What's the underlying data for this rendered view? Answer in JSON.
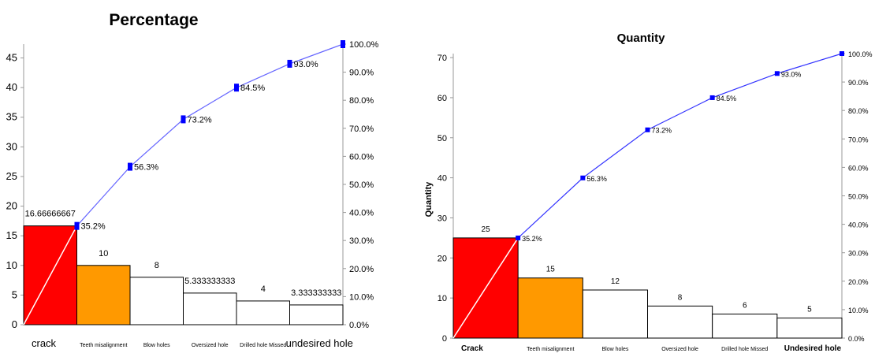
{
  "chart_data": [
    {
      "type": "bar",
      "title": "Percentage",
      "ylabel": "",
      "categories": [
        "crack",
        "Teeth misalignment",
        "Blow holes",
        "Oversized hole",
        "Drilled hole Missed",
        "undesired hole"
      ],
      "values": [
        16.66666667,
        10,
        8,
        5.333333333,
        4,
        3.333333333
      ],
      "value_labels": [
        "16.66666667",
        "10",
        "8",
        "5.333333333",
        "4",
        "3.333333333"
      ],
      "cumulative_percent": [
        35.2,
        56.3,
        73.2,
        84.5,
        93.0,
        100.0
      ],
      "cumulative_labels": [
        "35.2%",
        "56.3%",
        "73.2%",
        "84.5%",
        "93.0%",
        "100.0%"
      ],
      "ylim": [
        0,
        47.33
      ],
      "yticks": [
        "0",
        "5",
        "10",
        "15",
        "20",
        "25",
        "30",
        "35",
        "40",
        "45"
      ],
      "y2lim": [
        0,
        100
      ],
      "y2ticks": [
        "0.0%",
        "10.0%",
        "20.0%",
        "30.0%",
        "40.0%",
        "50.0%",
        "60.0%",
        "70.0%",
        "80.0%",
        "90.0%",
        "100.0%"
      ],
      "grid": false,
      "bar_colors": [
        "#ff0000",
        "#ff9900",
        "#ffffff",
        "#ffffff",
        "#ffffff",
        "#ffffff"
      ],
      "line_color": "#6666ff",
      "marker_color": "#0000ff"
    },
    {
      "type": "bar",
      "title": "Quantity",
      "ylabel": "Quantity",
      "categories": [
        "Crack",
        "Teeth misalignment",
        "Blow holes",
        "Oversized hole",
        "Drilled hole Missed",
        "Undesired hole"
      ],
      "values": [
        25,
        15,
        12,
        8,
        6,
        5
      ],
      "value_labels": [
        "25",
        "15",
        "12",
        "8",
        "6",
        "5"
      ],
      "cumulative_percent": [
        35.2,
        56.3,
        73.2,
        84.5,
        93.0,
        100.0
      ],
      "cumulative_labels": [
        "35.2%",
        "56.3%",
        "73.2%",
        "84.5%",
        "93.0%",
        "100.0%"
      ],
      "ylim": [
        0,
        71
      ],
      "yticks": [
        "0",
        "10",
        "20",
        "30",
        "40",
        "50",
        "60",
        "70"
      ],
      "y2lim": [
        0,
        100
      ],
      "y2ticks": [
        "0.0%",
        "10.0%",
        "20.0%",
        "30.0%",
        "40.0%",
        "50.0%",
        "60.0%",
        "70.0%",
        "80.0%",
        "90.0%",
        "100.0%"
      ],
      "grid": false,
      "bar_colors": [
        "#ff0000",
        "#ff9900",
        "#ffffff",
        "#ffffff",
        "#ffffff",
        "#ffffff"
      ],
      "line_color": "#3333ff",
      "marker_color": "#0000ff"
    }
  ]
}
